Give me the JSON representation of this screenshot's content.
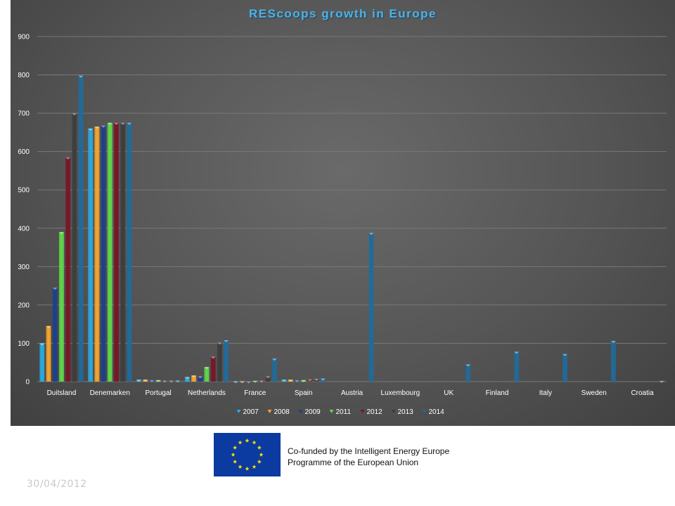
{
  "chart_data": {
    "type": "bar",
    "title": "REScoops  growth  in  Europe",
    "xlabel": "",
    "ylabel": "",
    "ylim": [
      0,
      900
    ],
    "yticks": [
      0,
      100,
      200,
      300,
      400,
      500,
      600,
      700,
      800,
      900
    ],
    "grid": true,
    "legend_position": "bottom",
    "categories": [
      "Duitsland",
      "Denemarken",
      "Portugal",
      "Netherlands",
      "France",
      "Spain",
      "Austria",
      "Luxembourg",
      "UK",
      "Finland",
      "Italy",
      "Sweden",
      "Croatia"
    ],
    "series": [
      {
        "name": "2007",
        "color": "#29abe2",
        "values": [
          100,
          660,
          5,
          12,
          1,
          5,
          0,
          0,
          0,
          0,
          0,
          0,
          0
        ]
      },
      {
        "name": "2008",
        "color": "#f7a52b",
        "values": [
          145,
          665,
          5,
          16,
          1,
          5,
          0,
          0,
          0,
          0,
          0,
          0,
          0
        ]
      },
      {
        "name": "2009",
        "color": "#1c3f8c",
        "values": [
          245,
          668,
          4,
          14,
          1,
          4,
          0,
          0,
          0,
          0,
          0,
          0,
          0
        ]
      },
      {
        "name": "2011",
        "color": "#5fd84a",
        "values": [
          390,
          675,
          4,
          38,
          2,
          4,
          0,
          0,
          0,
          0,
          0,
          0,
          0
        ]
      },
      {
        "name": "2012",
        "color": "#7a1524",
        "values": [
          585,
          675,
          3,
          65,
          3,
          6,
          0,
          0,
          0,
          0,
          0,
          0,
          0
        ]
      },
      {
        "name": "2013",
        "color": "#3d3d3d",
        "values": [
          700,
          675,
          3,
          102,
          14,
          7,
          0,
          0,
          0,
          0,
          0,
          0,
          0
        ]
      },
      {
        "name": "2014",
        "color": "#1f6b9c",
        "values": [
          798,
          675,
          3,
          108,
          60,
          8,
          388,
          0,
          45,
          78,
          72,
          106,
          2
        ]
      }
    ]
  },
  "footer": {
    "cofund_line1": "Co-funded by the Intelligent Energy Europe",
    "cofund_line2": "Programme of the European Union",
    "date": "30/04/2012"
  },
  "colors": {
    "title": "#4fb3e8",
    "panel": "#555555",
    "eu_blue": "#0b3aa0",
    "eu_gold": "#ffdd00"
  },
  "icons": [
    "eu-flag-icon"
  ]
}
